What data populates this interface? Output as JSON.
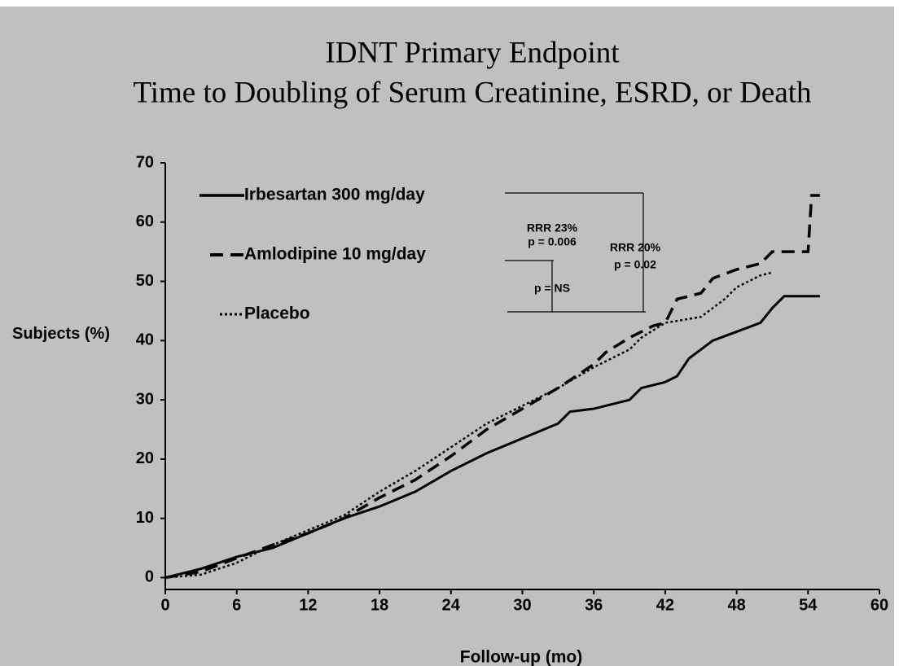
{
  "chart_data": {
    "type": "line",
    "title": "IDNT Primary Endpoint",
    "subtitle": "Time to Doubling of Serum Creatinine, ESRD, or Death",
    "y_label": "Subjects (%)",
    "x_label": "Follow-up (mo)",
    "xlim": [
      0,
      60
    ],
    "xticks": [
      0,
      6,
      12,
      18,
      24,
      30,
      36,
      42,
      48,
      54,
      60
    ],
    "ylim": [
      -2,
      70
    ],
    "yticks": [
      0,
      10,
      20,
      30,
      40,
      50,
      60,
      70
    ],
    "legend": "upper left",
    "annotations": [
      "RRR 23%",
      "p = 0.006",
      "p = NS",
      "RRR 20%",
      "p = 0.02"
    ],
    "series": [
      {
        "name": "Irbesartan 300 mg/day",
        "color": "#000000",
        "dash": "solid",
        "x": [
          0,
          3,
          6,
          9,
          12,
          15,
          18,
          21,
          24,
          27,
          30,
          33,
          34,
          36,
          39,
          40,
          42,
          43,
          44,
          46,
          48,
          50,
          51,
          52,
          55
        ],
        "values": [
          0,
          1.5,
          3.5,
          5,
          7.5,
          10,
          12,
          14.5,
          18,
          21,
          23.5,
          26,
          28,
          28.5,
          30,
          32,
          33,
          34,
          37,
          40,
          41.5,
          43,
          45.5,
          47.5,
          47.5
        ]
      },
      {
        "name": "Amlodipine 10 mg/day",
        "color": "#000000",
        "dash": "dash",
        "x": [
          0,
          3,
          6,
          9,
          12,
          15,
          18,
          21,
          24,
          27,
          30,
          33,
          36,
          37,
          39,
          41,
          42,
          43,
          45,
          46,
          48,
          50,
          51,
          54,
          54.3,
          55
        ],
        "values": [
          0,
          1,
          3.3,
          5.5,
          7.5,
          10,
          13.5,
          16.5,
          20.5,
          25,
          28.5,
          32,
          36,
          38,
          40.5,
          42.5,
          43,
          47,
          48,
          50.5,
          52,
          53,
          55,
          55,
          64.5,
          64.5
        ]
      },
      {
        "name": "Placebo",
        "color": "#000000",
        "dash": "dot",
        "x": [
          0,
          3,
          6,
          9,
          12,
          15,
          18,
          21,
          24,
          27,
          30,
          33,
          36,
          39,
          40,
          42,
          45,
          47,
          48,
          50,
          51
        ],
        "values": [
          0,
          0.5,
          2.5,
          5.5,
          8,
          10.5,
          14.5,
          18,
          22,
          26,
          29,
          32,
          35.5,
          38.5,
          40.5,
          43,
          44,
          47,
          49,
          51,
          51.5
        ]
      }
    ]
  }
}
